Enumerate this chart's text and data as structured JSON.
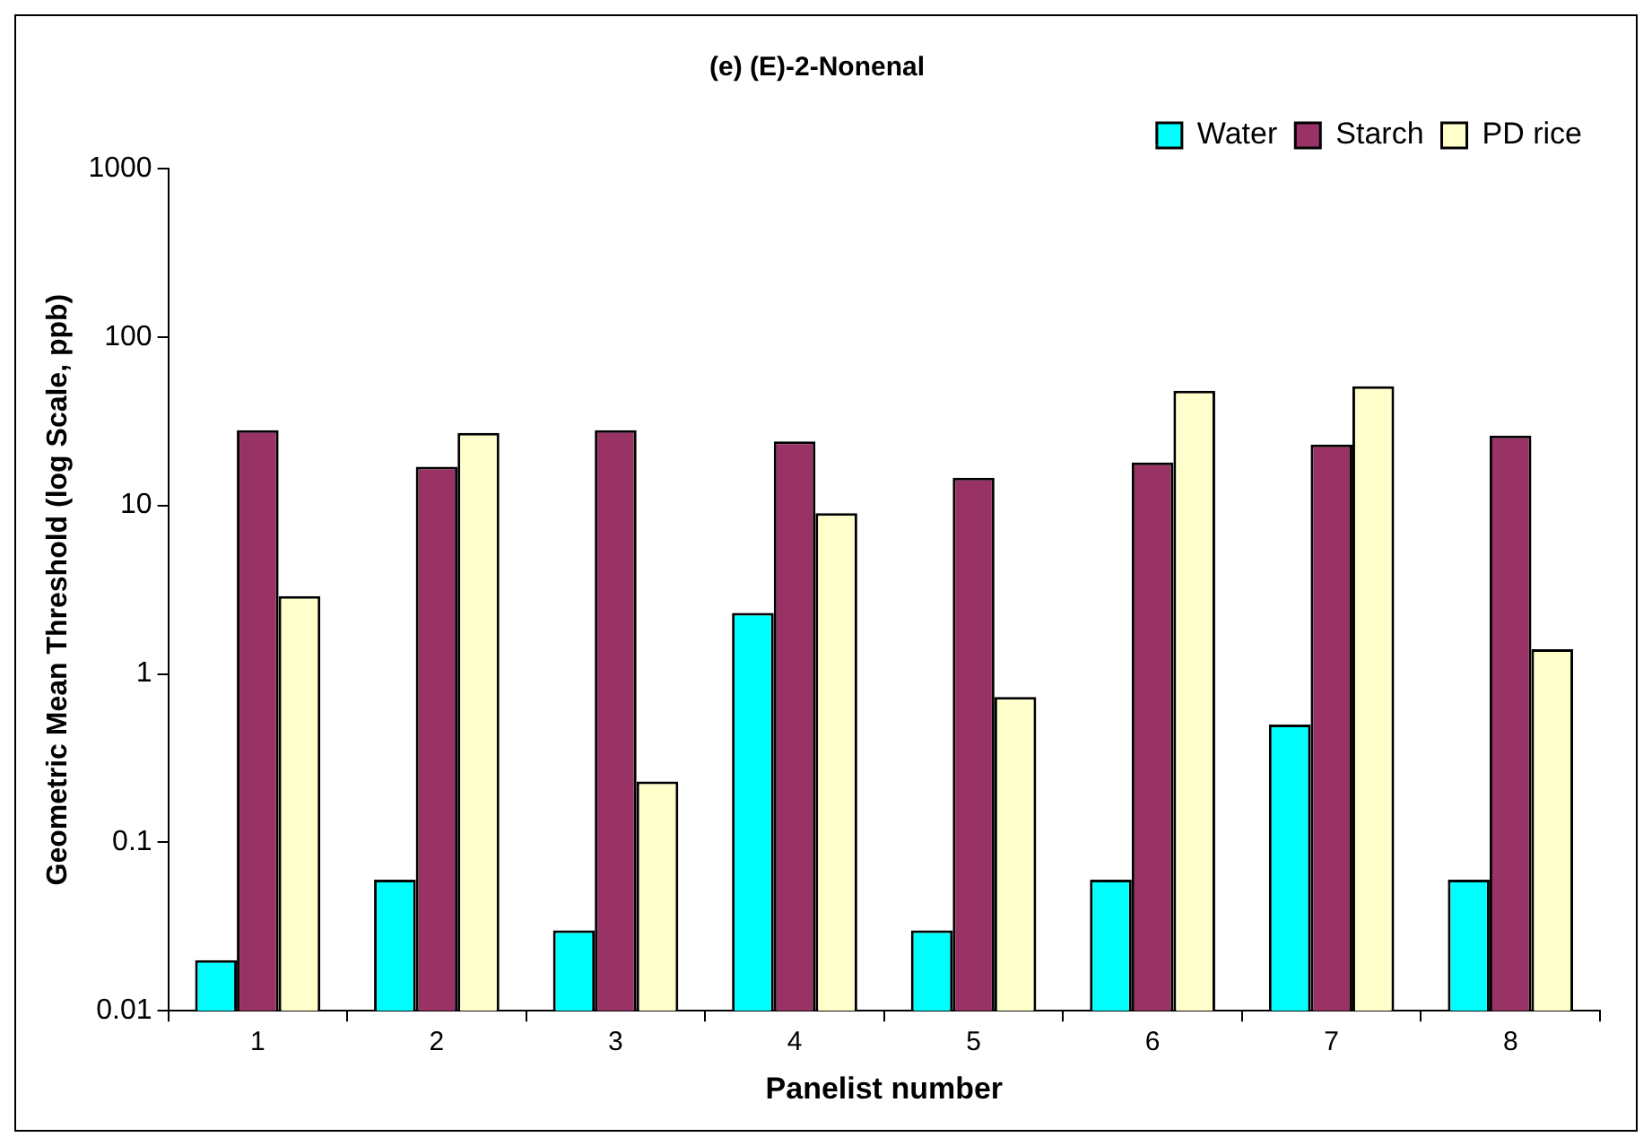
{
  "chart_data": {
    "type": "bar",
    "title": "(e) (E)-2-Nonenal",
    "xlabel": "Panelist number",
    "ylabel": "Geometric Mean Threshold (log Scale, ppb)",
    "categories": [
      "1",
      "2",
      "3",
      "4",
      "5",
      "6",
      "7",
      "8"
    ],
    "series": [
      {
        "name": "Water",
        "color": "#00ffff",
        "values": [
          0.02,
          0.06,
          0.03,
          2.3,
          0.03,
          0.06,
          0.5,
          0.06
        ]
      },
      {
        "name": "Starch",
        "color": "#993366",
        "values": [
          28,
          17,
          28,
          24,
          14.6,
          18,
          23,
          26
        ]
      },
      {
        "name": "PD rice",
        "color": "#ffffcc",
        "values": [
          2.9,
          27,
          0.23,
          9,
          0.73,
          48,
          51,
          1.4
        ]
      }
    ],
    "log": "y",
    "ylim": [
      0.01,
      1000
    ],
    "yticks": [
      0.01,
      0.1,
      1,
      10,
      100,
      1000
    ],
    "grid": false,
    "legend": "top right"
  }
}
